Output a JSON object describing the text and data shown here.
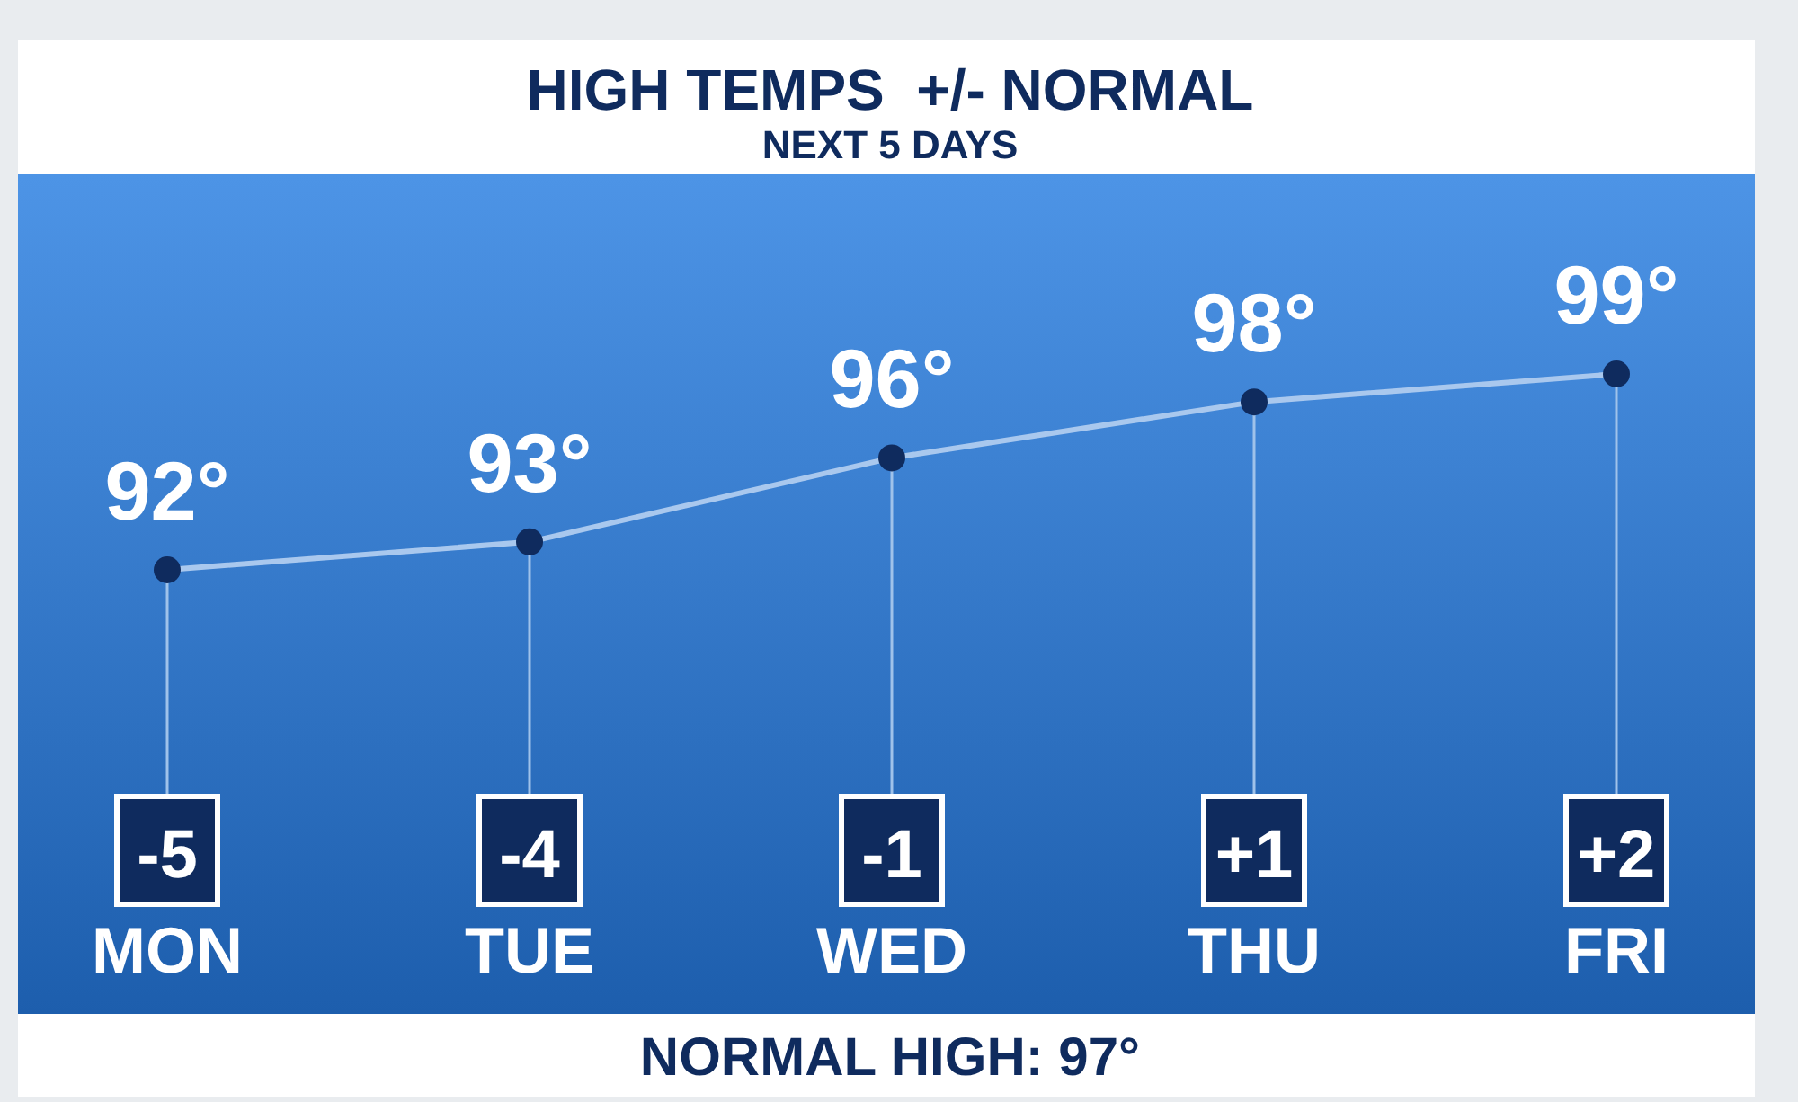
{
  "chart_data": {
    "type": "line",
    "title": "HIGH TEMPS  +/- NORMAL",
    "subtitle": "NEXT 5 DAYS",
    "categories": [
      "MON",
      "TUE",
      "WED",
      "THU",
      "FRI"
    ],
    "series": [
      {
        "color": "#a9c8ee",
        "values": [
          92,
          93,
          96,
          98,
          99
        ],
        "value_labels": [
          "92°",
          "93°",
          "96°",
          "98°",
          "99°"
        ]
      }
    ],
    "marker": "circle",
    "annotations": [
      "-5",
      "-4",
      "-1",
      "+1",
      "+2",
      "NORMAL HIGH: 97°"
    ],
    "grid": "x"
  }
}
